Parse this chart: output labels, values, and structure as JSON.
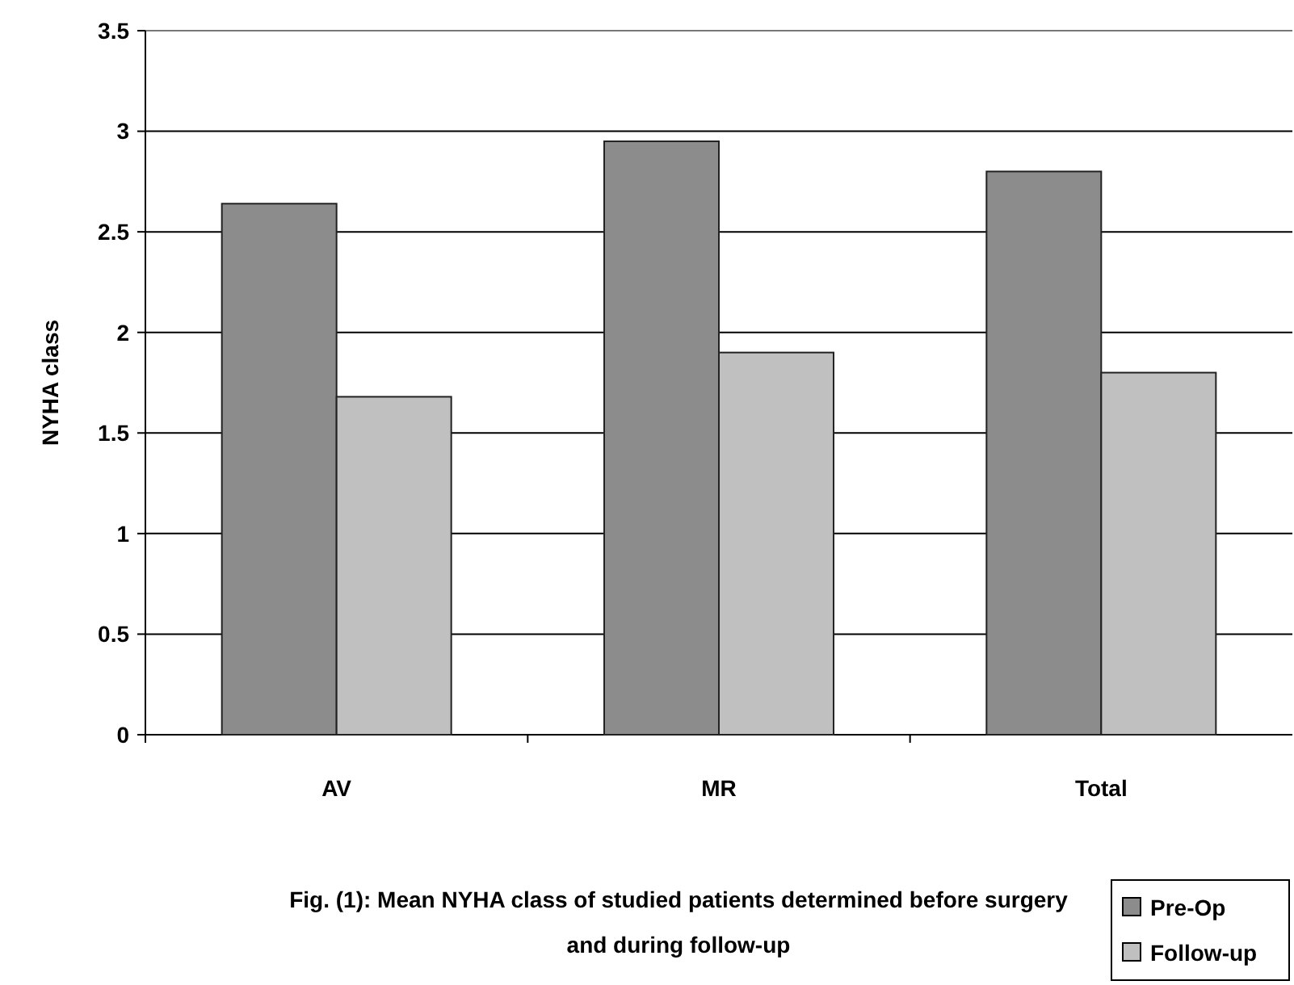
{
  "chart_data": {
    "type": "bar",
    "title": "Fig. (1): Mean NYHA class of studied patients determined before surgery and during follow-up",
    "ylabel": "NYHA class",
    "categories": [
      "AV",
      "MR",
      "Total"
    ],
    "series": [
      {
        "name": "Pre-Op",
        "color": "#8c8c8c",
        "values": [
          2.64,
          2.95,
          2.8
        ]
      },
      {
        "name": "Follow-up",
        "color": "#c0c0c0",
        "values": [
          1.68,
          1.9,
          1.8
        ]
      }
    ],
    "ylim": [
      0,
      3.5
    ],
    "yticks": [
      0,
      0.5,
      1,
      1.5,
      2,
      2.5,
      3,
      3.5
    ],
    "grid": "y",
    "legend": "bottom right"
  }
}
